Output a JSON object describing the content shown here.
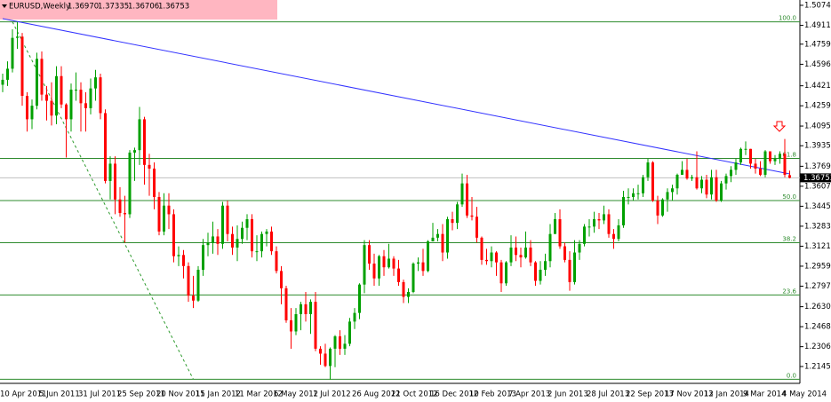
{
  "chart_data": {
    "type": "candlestick",
    "header": {
      "symbol": "EURUSD,Weekly",
      "quote": [
        "1.36970",
        "1.37335",
        "1.36706",
        "1.36753"
      ]
    },
    "up_color": "#00a000",
    "down_color": "#ff0000",
    "categories": [
      "10 Apr 2011",
      null,
      null,
      null,
      null,
      null,
      null,
      null,
      "5 Jun 2011",
      null,
      null,
      null,
      null,
      null,
      null,
      null,
      "31 Jul 2011",
      null,
      null,
      null,
      null,
      null,
      null,
      null,
      "25 Sep 2011",
      null,
      null,
      null,
      null,
      null,
      null,
      null,
      "20 Nov 2011",
      null,
      null,
      null,
      null,
      null,
      null,
      null,
      "15 Jan 2012",
      null,
      null,
      null,
      null,
      null,
      null,
      null,
      "11 Mar 2012",
      null,
      null,
      null,
      null,
      null,
      null,
      null,
      "6 May 2012",
      null,
      null,
      null,
      null,
      null,
      null,
      null,
      "1 Jul 2012",
      null,
      null,
      null,
      null,
      null,
      null,
      null,
      "26 Aug 2012",
      null,
      null,
      null,
      null,
      null,
      null,
      null,
      "21 Oct 2012",
      null,
      null,
      null,
      null,
      null,
      null,
      null,
      "16 Dec 2012",
      null,
      null,
      null,
      null,
      null,
      null,
      null,
      "10 Feb 2013",
      null,
      null,
      null,
      null,
      null,
      null,
      null,
      "7 Apr 2013",
      null,
      null,
      null,
      null,
      null,
      null,
      null,
      "2 Jun 2013",
      null,
      null,
      null,
      null,
      null,
      null,
      null,
      "28 Jul 2013",
      null,
      null,
      null,
      null,
      null,
      null,
      null,
      "22 Sep 2013",
      null,
      null,
      null,
      null,
      null,
      null,
      null,
      "17 Nov 2013",
      null,
      null,
      null,
      null,
      null,
      null,
      null,
      "12 Jan 2014",
      null,
      null,
      null,
      null,
      null,
      null,
      null,
      "9 Mar 2014",
      null,
      null,
      null,
      null,
      null,
      null,
      null,
      "4 May 2014",
      null
    ],
    "open": [
      1.443,
      1.447,
      1.456,
      1.481,
      1.482,
      1.434,
      1.415,
      1.426,
      1.464,
      1.435,
      1.43,
      1.418,
      1.45,
      1.427,
      1.415,
      1.439,
      1.439,
      1.428,
      1.424,
      1.44,
      1.449,
      1.42,
      1.365,
      1.379,
      1.35,
      1.339,
      1.338,
      1.388,
      1.39,
      1.415,
      1.378,
      1.375,
      1.352,
      1.324,
      1.345,
      1.338,
      1.304,
      1.305,
      1.296,
      1.272,
      1.268,
      1.293,
      1.313,
      1.315,
      1.32,
      1.314,
      1.345,
      1.322,
      1.311,
      1.318,
      1.327,
      1.334,
      1.308,
      1.308,
      1.322,
      1.324,
      1.308,
      1.292,
      1.278,
      1.252,
      1.243,
      1.257,
      1.265,
      1.257,
      1.267,
      1.229,
      1.225,
      1.215,
      1.229,
      1.239,
      1.229,
      1.233,
      1.251,
      1.258,
      1.281,
      1.313,
      1.298,
      1.286,
      1.304,
      1.295,
      1.302,
      1.294,
      1.283,
      1.271,
      1.275,
      1.298,
      1.299,
      1.292,
      1.316,
      1.319,
      1.322,
      1.307,
      1.334,
      1.331,
      1.346,
      1.363,
      1.337,
      1.336,
      1.319,
      1.301,
      1.3,
      1.307,
      1.299,
      1.282,
      1.299,
      1.311,
      1.305,
      1.303,
      1.311,
      1.299,
      1.284,
      1.293,
      1.3,
      1.322,
      1.334,
      1.312,
      1.301,
      1.283,
      1.307,
      1.314,
      1.328,
      1.328,
      1.334,
      1.333,
      1.338,
      1.322,
      1.318,
      1.329,
      1.352,
      1.352,
      1.355,
      1.355,
      1.368,
      1.38,
      1.349,
      1.337,
      1.35,
      1.356,
      1.359,
      1.37,
      1.374,
      1.367,
      1.368,
      1.359,
      1.366,
      1.354,
      1.368,
      1.349,
      1.363,
      1.369,
      1.374,
      1.38,
      1.391,
      1.391,
      1.379,
      1.375,
      1.37,
      1.389,
      1.381,
      1.383,
      1.387,
      1.3697
    ],
    "high": [
      1.452,
      1.462,
      1.488,
      1.494,
      1.485,
      1.437,
      1.431,
      1.469,
      1.47,
      1.442,
      1.445,
      1.458,
      1.458,
      1.428,
      1.444,
      1.453,
      1.445,
      1.437,
      1.448,
      1.455,
      1.452,
      1.423,
      1.385,
      1.385,
      1.36,
      1.353,
      1.39,
      1.392,
      1.425,
      1.417,
      1.387,
      1.38,
      1.356,
      1.355,
      1.355,
      1.342,
      1.312,
      1.309,
      1.299,
      1.288,
      1.296,
      1.318,
      1.323,
      1.332,
      1.326,
      1.348,
      1.349,
      1.328,
      1.329,
      1.332,
      1.338,
      1.338,
      1.321,
      1.324,
      1.326,
      1.328,
      1.312,
      1.296,
      1.28,
      1.262,
      1.262,
      1.267,
      1.275,
      1.269,
      1.275,
      1.231,
      1.233,
      1.23,
      1.24,
      1.244,
      1.24,
      1.254,
      1.262,
      1.282,
      1.317,
      1.317,
      1.306,
      1.305,
      1.309,
      1.314,
      1.304,
      1.301,
      1.285,
      1.278,
      1.299,
      1.303,
      1.31,
      1.317,
      1.331,
      1.326,
      1.33,
      1.336,
      1.34,
      1.348,
      1.371,
      1.37,
      1.352,
      1.344,
      1.32,
      1.31,
      1.312,
      1.308,
      1.301,
      1.3,
      1.321,
      1.32,
      1.311,
      1.324,
      1.317,
      1.3,
      1.3,
      1.306,
      1.33,
      1.339,
      1.342,
      1.315,
      1.308,
      1.317,
      1.317,
      1.33,
      1.334,
      1.34,
      1.339,
      1.345,
      1.342,
      1.326,
      1.334,
      1.357,
      1.359,
      1.359,
      1.362,
      1.37,
      1.383,
      1.381,
      1.353,
      1.351,
      1.359,
      1.362,
      1.371,
      1.381,
      1.383,
      1.37,
      1.389,
      1.369,
      1.37,
      1.374,
      1.374,
      1.365,
      1.371,
      1.377,
      1.383,
      1.392,
      1.397,
      1.391,
      1.383,
      1.381,
      1.39,
      1.389,
      1.386,
      1.389,
      1.399,
      1.37335
    ],
    "low": [
      1.437,
      1.442,
      1.453,
      1.472,
      1.426,
      1.405,
      1.407,
      1.423,
      1.43,
      1.414,
      1.41,
      1.411,
      1.424,
      1.384,
      1.405,
      1.43,
      1.405,
      1.405,
      1.419,
      1.43,
      1.415,
      1.363,
      1.35,
      1.338,
      1.336,
      1.315,
      1.335,
      1.365,
      1.378,
      1.362,
      1.353,
      1.342,
      1.321,
      1.321,
      1.326,
      1.299,
      1.296,
      1.286,
      1.267,
      1.262,
      1.267,
      1.288,
      1.304,
      1.306,
      1.305,
      1.31,
      1.316,
      1.305,
      1.3,
      1.314,
      1.317,
      1.303,
      1.3,
      1.303,
      1.312,
      1.305,
      1.29,
      1.265,
      1.25,
      1.229,
      1.24,
      1.244,
      1.251,
      1.241,
      1.227,
      1.216,
      1.214,
      1.204,
      1.214,
      1.224,
      1.224,
      1.231,
      1.245,
      1.253,
      1.274,
      1.293,
      1.28,
      1.28,
      1.288,
      1.294,
      1.288,
      1.28,
      1.266,
      1.266,
      1.274,
      1.292,
      1.288,
      1.291,
      1.316,
      1.316,
      1.3,
      1.302,
      1.325,
      1.326,
      1.344,
      1.335,
      1.333,
      1.315,
      1.297,
      1.297,
      1.295,
      1.288,
      1.275,
      1.28,
      1.296,
      1.3,
      1.295,
      1.302,
      1.296,
      1.28,
      1.281,
      1.288,
      1.295,
      1.322,
      1.31,
      1.299,
      1.276,
      1.281,
      1.301,
      1.312,
      1.32,
      1.323,
      1.326,
      1.33,
      1.319,
      1.31,
      1.316,
      1.327,
      1.346,
      1.349,
      1.35,
      1.352,
      1.365,
      1.348,
      1.33,
      1.336,
      1.34,
      1.349,
      1.354,
      1.37,
      1.366,
      1.365,
      1.358,
      1.355,
      1.351,
      1.35,
      1.348,
      1.348,
      1.358,
      1.364,
      1.37,
      1.378,
      1.386,
      1.375,
      1.371,
      1.369,
      1.368,
      1.379,
      1.378,
      1.379,
      1.368,
      1.36706
    ],
    "close": [
      1.447,
      1.456,
      1.481,
      1.482,
      1.434,
      1.415,
      1.426,
      1.464,
      1.435,
      1.43,
      1.418,
      1.45,
      1.427,
      1.415,
      1.439,
      1.439,
      1.428,
      1.424,
      1.44,
      1.449,
      1.42,
      1.365,
      1.379,
      1.35,
      1.339,
      1.338,
      1.388,
      1.39,
      1.415,
      1.378,
      1.375,
      1.352,
      1.324,
      1.345,
      1.338,
      1.304,
      1.305,
      1.296,
      1.272,
      1.268,
      1.293,
      1.313,
      1.315,
      1.32,
      1.314,
      1.345,
      1.322,
      1.311,
      1.318,
      1.327,
      1.334,
      1.308,
      1.308,
      1.322,
      1.324,
      1.308,
      1.292,
      1.278,
      1.252,
      1.243,
      1.257,
      1.265,
      1.257,
      1.267,
      1.229,
      1.225,
      1.215,
      1.229,
      1.239,
      1.229,
      1.233,
      1.251,
      1.258,
      1.281,
      1.313,
      1.298,
      1.286,
      1.304,
      1.295,
      1.302,
      1.294,
      1.283,
      1.271,
      1.275,
      1.298,
      1.299,
      1.292,
      1.316,
      1.319,
      1.322,
      1.307,
      1.334,
      1.331,
      1.346,
      1.363,
      1.337,
      1.336,
      1.319,
      1.301,
      1.3,
      1.307,
      1.299,
      1.282,
      1.299,
      1.311,
      1.305,
      1.303,
      1.311,
      1.299,
      1.284,
      1.293,
      1.3,
      1.322,
      1.334,
      1.312,
      1.301,
      1.283,
      1.307,
      1.314,
      1.328,
      1.328,
      1.334,
      1.333,
      1.338,
      1.322,
      1.318,
      1.329,
      1.352,
      1.352,
      1.355,
      1.355,
      1.368,
      1.38,
      1.349,
      1.337,
      1.35,
      1.356,
      1.359,
      1.37,
      1.374,
      1.367,
      1.368,
      1.359,
      1.366,
      1.354,
      1.368,
      1.349,
      1.363,
      1.369,
      1.374,
      1.38,
      1.391,
      1.391,
      1.379,
      1.375,
      1.37,
      1.389,
      1.381,
      1.383,
      1.387,
      1.37,
      1.36753
    ],
    "ylim": [
      1.2009,
      1.5117
    ],
    "yticks": [
      {
        "value": 1.5074,
        "label": "1.50740"
      },
      {
        "value": 1.49115,
        "label": "1.49115"
      },
      {
        "value": 1.4759,
        "label": "1.47590"
      },
      {
        "value": 1.4596,
        "label": "1.45960"
      },
      {
        "value": 1.44215,
        "label": "1.44215"
      },
      {
        "value": 1.42595,
        "label": "1.42595"
      },
      {
        "value": 1.4095,
        "label": "1.40950"
      },
      {
        "value": 1.39355,
        "label": "1.39355"
      },
      {
        "value": 1.3769,
        "label": "1.37690"
      },
      {
        "value": 1.3607,
        "label": "1.36070"
      },
      {
        "value": 1.3445,
        "label": "1.34450"
      },
      {
        "value": 1.3283,
        "label": "1.32830"
      },
      {
        "value": 1.3121,
        "label": "1.31210"
      },
      {
        "value": 1.2959,
        "label": "1.29590"
      },
      {
        "value": 1.2797,
        "label": "1.27970"
      },
      {
        "value": 1.26305,
        "label": "1.26305"
      },
      {
        "value": 1.24685,
        "label": "1.24685"
      },
      {
        "value": 1.23065,
        "label": "1.23065"
      },
      {
        "value": 1.21455,
        "label": "1.21455"
      }
    ],
    "current_price": 1.36753,
    "fib_color": "#2e8b2e",
    "fib_levels": [
      {
        "label": "100.0",
        "value": 1.494
      },
      {
        "label": "61.8",
        "value": 1.3833
      },
      {
        "label": "50.0",
        "value": 1.3491
      },
      {
        "label": "38.2",
        "value": 1.3149
      },
      {
        "label": "23.6",
        "value": 1.2726
      },
      {
        "label": "0.0",
        "value": 1.2042
      }
    ],
    "trendlines": [
      {
        "color": "#3333ff",
        "dashed": false,
        "from": {
          "index": 0,
          "price": 1.4966
        },
        "to": {
          "index": 161,
          "price": 1.3707
        }
      },
      {
        "color": "#2e9b2e",
        "dashed": true,
        "from": {
          "index": 2,
          "price": 1.494
        },
        "to": {
          "index": 39,
          "price": 1.2042
        }
      }
    ]
  }
}
